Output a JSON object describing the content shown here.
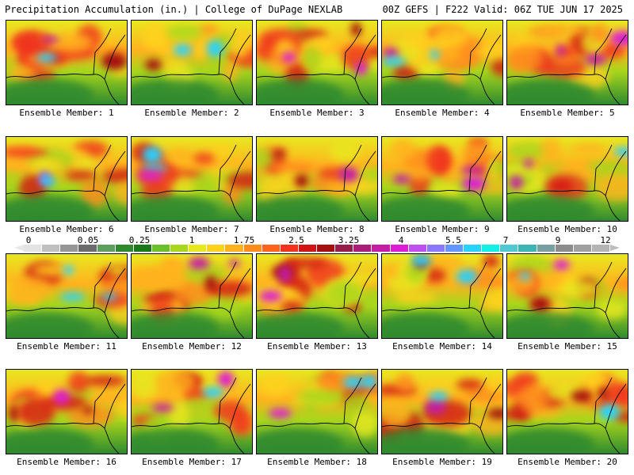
{
  "header": {
    "left": "Precipitation Accumulation (in.) | College of DuPage NEXLAB",
    "right": "00Z GEFS | F222 Valid: 06Z TUE JUN 17 2025"
  },
  "colorbar": {
    "labels": [
      "0",
      "0.05",
      "0.25",
      "1",
      "1.75",
      "2.5",
      "3.25",
      "4",
      "5.5",
      "7",
      "9",
      "12"
    ],
    "colors": [
      "#e4e4e4",
      "#c0c0c0",
      "#969696",
      "#6b6b6b",
      "#5e9e5e",
      "#2f8a2f",
      "#1a7a1a",
      "#6bbf2b",
      "#a8d61c",
      "#e8e820",
      "#ffd21e",
      "#ffb21e",
      "#ff8c1e",
      "#ff641e",
      "#f0321e",
      "#d21414",
      "#a50f0f",
      "#961e4b",
      "#aa1e78",
      "#c31ea5",
      "#dc1ed2",
      "#be50f0",
      "#8c78ff",
      "#6496ff",
      "#28d2ff",
      "#14f0e6",
      "#50c8d2",
      "#3cb4b4",
      "#78a0a0",
      "#8c8c8c",
      "#a0a0a0",
      "#b4b4b4"
    ]
  },
  "panels": [
    {
      "label": "Ensemble Member: 1"
    },
    {
      "label": "Ensemble Member: 2"
    },
    {
      "label": "Ensemble Member: 3"
    },
    {
      "label": "Ensemble Member: 4"
    },
    {
      "label": "Ensemble Member: 5"
    },
    {
      "label": "Ensemble Member: 6"
    },
    {
      "label": "Ensemble Member: 7"
    },
    {
      "label": "Ensemble Member: 8"
    },
    {
      "label": "Ensemble Member: 9"
    },
    {
      "label": "Ensemble Member: 10"
    },
    {
      "label": "Ensemble Member: 11"
    },
    {
      "label": "Ensemble Member: 12"
    },
    {
      "label": "Ensemble Member: 13"
    },
    {
      "label": "Ensemble Member: 14"
    },
    {
      "label": "Ensemble Member: 15"
    },
    {
      "label": "Ensemble Member: 16"
    },
    {
      "label": "Ensemble Member: 17"
    },
    {
      "label": "Ensemble Member: 18"
    },
    {
      "label": "Ensemble Member: 19"
    },
    {
      "label": "Ensemble Member: 20"
    }
  ]
}
